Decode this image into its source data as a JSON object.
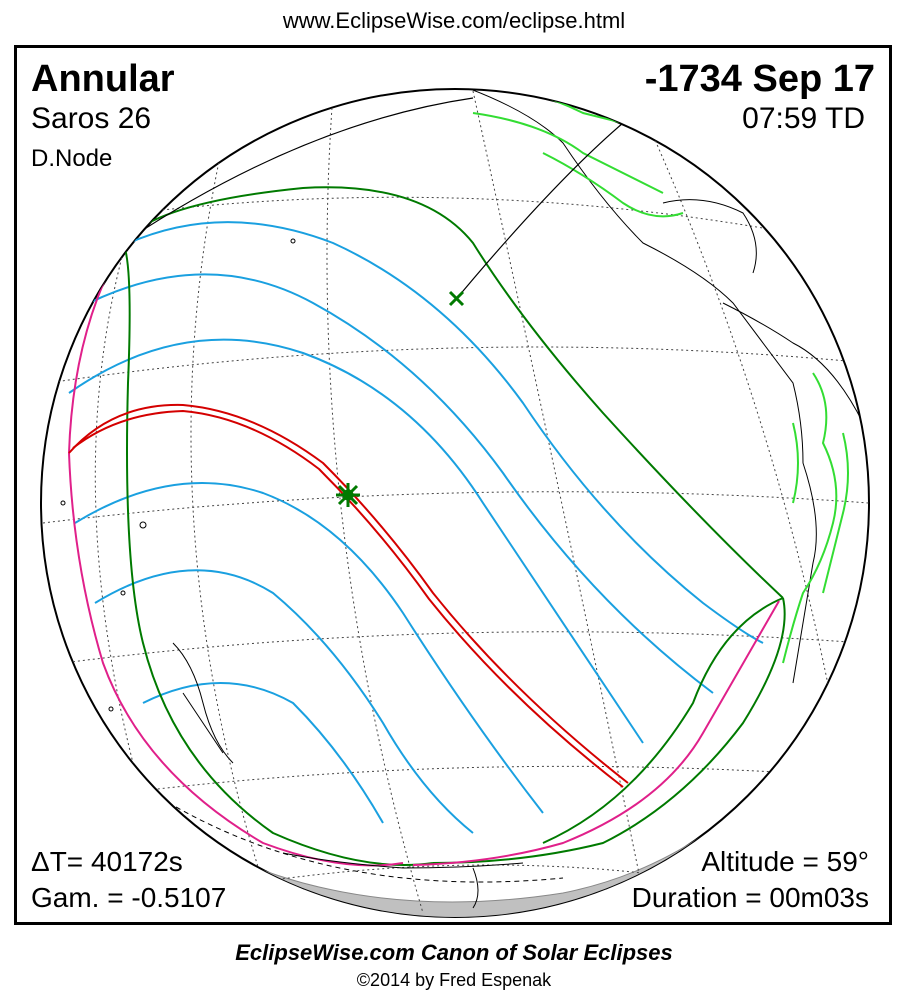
{
  "header_url": "www.EclipseWise.com/eclipse.html",
  "eclipse": {
    "type": "Annular",
    "saros": "Saros  26",
    "node": "D.Node",
    "date": "-1734 Sep 17",
    "time": "07:59 TD",
    "delta_t": "ΔT=  40172s",
    "gamma": "Gam. = -0.5107",
    "altitude": "Altitude = 59°",
    "duration": "Duration = 00m03s"
  },
  "footer": {
    "title": "EclipseWise.com Canon of Solar Eclipses",
    "copyright": "©2014 by Fred Espenak"
  },
  "colors": {
    "central_path": "#d40000",
    "penumbral_limits": "#007a00",
    "magnitude_curves": "#1aa0e0",
    "rise_set_curves": "#e0208a",
    "night_shade": "#c0c0c0",
    "coastlines": "#000000",
    "highlight_coast": "#33dd33"
  },
  "icons": {
    "greatest_eclipse": "asterisk-marker-icon",
    "sub_solar_point": "x-marker-icon"
  }
}
